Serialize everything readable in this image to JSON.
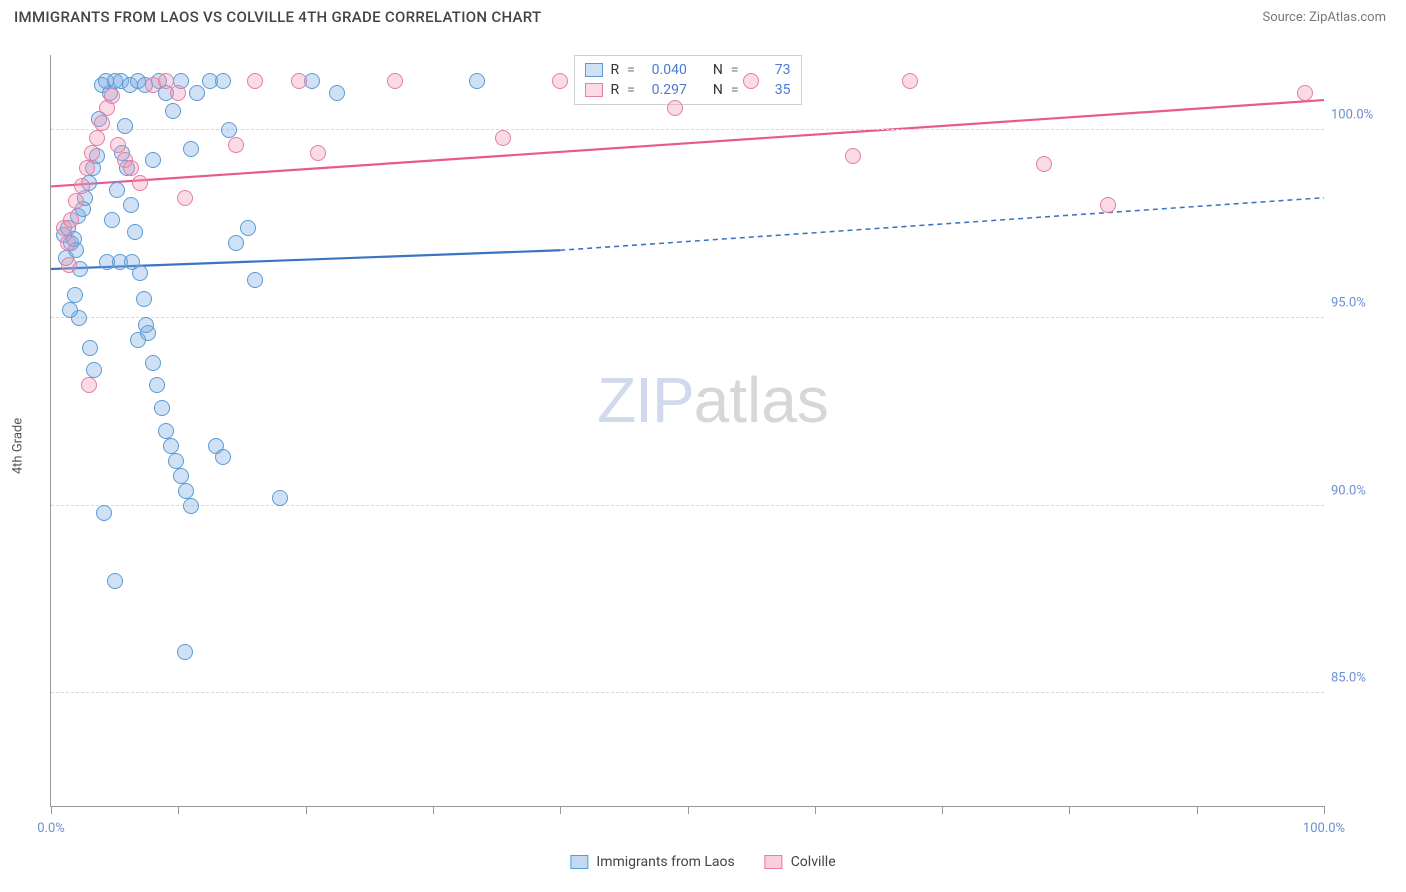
{
  "title": "IMMIGRANTS FROM LAOS VS COLVILLE 4TH GRADE CORRELATION CHART",
  "source": "Source: ZipAtlas.com",
  "ylabel": "4th Grade",
  "watermark_a": "ZIP",
  "watermark_b": "atlas",
  "chart": {
    "type": "scatter",
    "background_color": "#ffffff",
    "grid_color": "#d8d8d8",
    "axis_color": "#999999",
    "label_color": "#6b8fd6",
    "xlim": [
      0,
      100
    ],
    "ylim": [
      82,
      102
    ],
    "xticks": [
      0,
      10,
      20,
      30,
      40,
      50,
      60,
      70,
      80,
      90,
      100
    ],
    "xtick_labels": {
      "0": "0.0%",
      "100": "100.0%"
    },
    "yticks": [
      85,
      90,
      95,
      100
    ],
    "ytick_labels": {
      "85": "85.0%",
      "90": "90.0%",
      "95": "95.0%",
      "100": "100.0%"
    },
    "point_radius": 8,
    "series": [
      {
        "name": "Immigrants from Laos",
        "fill": "rgba(120,170,225,0.35)",
        "stroke": "#5a9bd5",
        "trend_color": "#3a74c4",
        "trend_width": 2.2,
        "r": "0.040",
        "n": "73",
        "trend": {
          "x1": 0,
          "y1": 96.3,
          "x_solid": 40,
          "y_solid": 96.8,
          "x2": 100,
          "y2": 98.2
        },
        "points": [
          [
            1.0,
            97.2
          ],
          [
            1.3,
            97.4
          ],
          [
            1.6,
            97.0
          ],
          [
            1.2,
            96.6
          ],
          [
            1.8,
            97.1
          ],
          [
            2.0,
            96.8
          ],
          [
            2.3,
            96.3
          ],
          [
            2.1,
            97.7
          ],
          [
            2.5,
            97.9
          ],
          [
            2.7,
            98.2
          ],
          [
            3.0,
            98.6
          ],
          [
            3.3,
            99.0
          ],
          [
            3.6,
            99.3
          ],
          [
            3.8,
            100.3
          ],
          [
            4.0,
            101.2
          ],
          [
            4.3,
            101.3
          ],
          [
            4.6,
            101.0
          ],
          [
            5.0,
            101.3
          ],
          [
            5.5,
            101.3
          ],
          [
            5.8,
            100.1
          ],
          [
            6.0,
            99.0
          ],
          [
            6.3,
            98.0
          ],
          [
            6.6,
            97.3
          ],
          [
            7.0,
            96.2
          ],
          [
            7.3,
            95.5
          ],
          [
            7.6,
            94.6
          ],
          [
            8.0,
            93.8
          ],
          [
            8.3,
            93.2
          ],
          [
            8.7,
            92.6
          ],
          [
            9.0,
            92.0
          ],
          [
            9.4,
            91.6
          ],
          [
            9.8,
            91.2
          ],
          [
            10.2,
            90.8
          ],
          [
            10.6,
            90.4
          ],
          [
            11.0,
            90.0
          ],
          [
            4.2,
            89.8
          ],
          [
            5.0,
            88.0
          ],
          [
            10.5,
            86.1
          ],
          [
            6.8,
            94.4
          ],
          [
            7.5,
            94.8
          ],
          [
            3.1,
            94.2
          ],
          [
            3.4,
            93.6
          ],
          [
            2.2,
            95.0
          ],
          [
            1.5,
            95.2
          ],
          [
            1.9,
            95.6
          ],
          [
            4.8,
            97.6
          ],
          [
            5.2,
            98.4
          ],
          [
            5.6,
            99.4
          ],
          [
            6.2,
            101.2
          ],
          [
            6.8,
            101.3
          ],
          [
            7.4,
            101.2
          ],
          [
            8.0,
            99.2
          ],
          [
            8.5,
            101.3
          ],
          [
            9.0,
            101.0
          ],
          [
            9.6,
            100.5
          ],
          [
            10.2,
            101.3
          ],
          [
            11.0,
            99.5
          ],
          [
            11.5,
            101.0
          ],
          [
            12.5,
            101.3
          ],
          [
            13.5,
            101.3
          ],
          [
            14.0,
            100.0
          ],
          [
            14.5,
            97.0
          ],
          [
            15.5,
            97.4
          ],
          [
            13.0,
            91.6
          ],
          [
            13.5,
            91.3
          ],
          [
            18.0,
            90.2
          ],
          [
            20.5,
            101.3
          ],
          [
            22.5,
            101.0
          ],
          [
            33.5,
            101.3
          ],
          [
            16.0,
            96.0
          ],
          [
            4.4,
            96.5
          ],
          [
            5.4,
            96.5
          ],
          [
            6.4,
            96.5
          ]
        ]
      },
      {
        "name": "Colville",
        "fill": "rgba(240,150,180,0.35)",
        "stroke": "#e67da4",
        "trend_color": "#e85a8f",
        "trend_width": 2.2,
        "r": "0.297",
        "n": "35",
        "trend": {
          "x1": 0,
          "y1": 98.5,
          "x_solid": 100,
          "y_solid": 100.8,
          "x2": 100,
          "y2": 100.8
        },
        "points": [
          [
            1.0,
            97.4
          ],
          [
            1.3,
            97.0
          ],
          [
            1.6,
            97.6
          ],
          [
            2.0,
            98.1
          ],
          [
            2.4,
            98.5
          ],
          [
            2.8,
            99.0
          ],
          [
            3.2,
            99.4
          ],
          [
            3.6,
            99.8
          ],
          [
            4.0,
            100.2
          ],
          [
            4.4,
            100.6
          ],
          [
            4.8,
            100.9
          ],
          [
            5.3,
            99.6
          ],
          [
            5.8,
            99.2
          ],
          [
            6.3,
            99.0
          ],
          [
            7.0,
            98.6
          ],
          [
            8.0,
            101.2
          ],
          [
            9.0,
            101.3
          ],
          [
            10.0,
            101.0
          ],
          [
            10.5,
            98.2
          ],
          [
            14.5,
            99.6
          ],
          [
            16.0,
            101.3
          ],
          [
            19.5,
            101.3
          ],
          [
            21.0,
            99.4
          ],
          [
            27.0,
            101.3
          ],
          [
            35.5,
            99.8
          ],
          [
            40.0,
            101.3
          ],
          [
            49.0,
            100.6
          ],
          [
            55.0,
            101.3
          ],
          [
            63.0,
            99.3
          ],
          [
            67.5,
            101.3
          ],
          [
            78.0,
            99.1
          ],
          [
            83.0,
            98.0
          ],
          [
            98.5,
            101.0
          ],
          [
            3.0,
            93.2
          ],
          [
            1.4,
            96.4
          ]
        ]
      }
    ]
  },
  "stats_labels": {
    "r": "R",
    "n": "N",
    "eq": "="
  },
  "legend": [
    {
      "label": "Immigrants from Laos",
      "fill": "rgba(120,170,225,0.45)",
      "stroke": "#5a9bd5"
    },
    {
      "label": "Colville",
      "fill": "rgba(240,150,180,0.45)",
      "stroke": "#e67da4"
    }
  ]
}
